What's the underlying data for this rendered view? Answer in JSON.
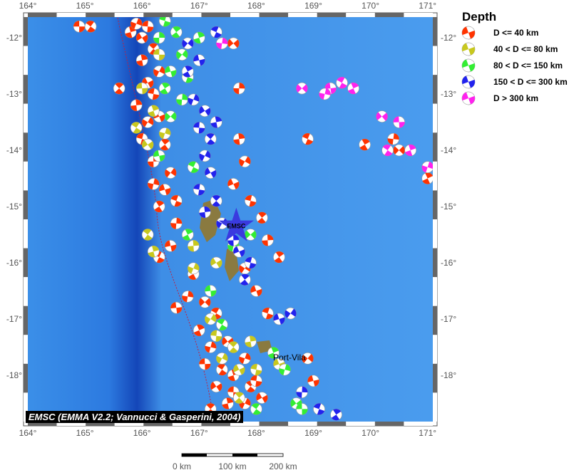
{
  "map": {
    "lon_range": [
      163.94,
      171.18
    ],
    "lat_range": [
      -18.9,
      -11.56
    ],
    "lon_ticks": [
      "164°",
      "165°",
      "166°",
      "167°",
      "168°",
      "169°",
      "170°",
      "171°"
    ],
    "lat_ticks": [
      "-12°",
      "-13°",
      "-14°",
      "-15°",
      "-16°",
      "-17°",
      "-18°"
    ],
    "ocean_color": "#2f86e6",
    "marker": {
      "label": "EMSC",
      "lon": 167.65,
      "lat": -15.35,
      "color": "#3a3adf"
    },
    "place_label": "Port-Vila",
    "credit": "EMSC (EMMA V2.2; Vannucci & Gasperini, 2004)"
  },
  "scale_bar": {
    "labels": [
      "0 km",
      "100 km",
      "200 km"
    ]
  },
  "legend": {
    "title": "Depth",
    "items": [
      {
        "label": "D <= 40 km",
        "color": "#ff3300"
      },
      {
        "label": "40 < D <= 80 km",
        "color": "#c8c81e"
      },
      {
        "label": "80 < D <= 150 km",
        "color": "#33ee33"
      },
      {
        "label": "150 < D <= 300 km",
        "color": "#2222ee"
      },
      {
        "label": "D > 300 km",
        "color": "#ff22ee"
      }
    ]
  },
  "events": [
    [
      164.9,
      -11.8,
      0
    ],
    [
      165.1,
      -11.8,
      0
    ],
    [
      165.8,
      -11.9,
      0
    ],
    [
      165.9,
      -11.75,
      0
    ],
    [
      166.0,
      -12.0,
      0
    ],
    [
      166.1,
      -11.8,
      0
    ],
    [
      166.2,
      -12.2,
      0
    ],
    [
      166.0,
      -12.4,
      0
    ],
    [
      166.3,
      -12.6,
      0
    ],
    [
      166.1,
      -12.8,
      0
    ],
    [
      166.2,
      -13.0,
      0
    ],
    [
      165.6,
      -12.9,
      0
    ],
    [
      165.9,
      -13.2,
      0
    ],
    [
      166.1,
      -13.5,
      0
    ],
    [
      166.3,
      -13.4,
      0
    ],
    [
      166.0,
      -13.8,
      0
    ],
    [
      166.4,
      -13.9,
      0
    ],
    [
      166.2,
      -14.2,
      0
    ],
    [
      166.5,
      -14.4,
      0
    ],
    [
      166.4,
      -14.7,
      0
    ],
    [
      166.6,
      -14.9,
      0
    ],
    [
      166.3,
      -15.0,
      0
    ],
    [
      166.6,
      -15.3,
      0
    ],
    [
      166.8,
      -15.5,
      0
    ],
    [
      166.5,
      -15.7,
      0
    ],
    [
      166.3,
      -15.9,
      0
    ],
    [
      166.9,
      -16.2,
      0
    ],
    [
      166.8,
      -16.6,
      0
    ],
    [
      167.1,
      -16.7,
      0
    ],
    [
      166.6,
      -16.8,
      0
    ],
    [
      167.3,
      -16.9,
      0
    ],
    [
      167.0,
      -17.2,
      0
    ],
    [
      167.2,
      -17.5,
      0
    ],
    [
      167.5,
      -17.4,
      0
    ],
    [
      167.1,
      -17.8,
      0
    ],
    [
      167.4,
      -17.9,
      0
    ],
    [
      167.6,
      -18.0,
      0
    ],
    [
      167.8,
      -17.7,
      0
    ],
    [
      167.3,
      -18.2,
      0
    ],
    [
      167.6,
      -18.3,
      0
    ],
    [
      167.9,
      -18.2,
      0
    ],
    [
      167.5,
      -18.5,
      0
    ],
    [
      167.8,
      -18.5,
      0
    ],
    [
      168.1,
      -18.4,
      0
    ],
    [
      168.0,
      -18.1,
      0
    ],
    [
      167.2,
      -18.6,
      0
    ],
    [
      167.7,
      -13.8,
      0
    ],
    [
      167.8,
      -14.2,
      0
    ],
    [
      167.6,
      -14.6,
      0
    ],
    [
      167.9,
      -14.9,
      0
    ],
    [
      168.1,
      -15.2,
      0
    ],
    [
      168.2,
      -15.6,
      0
    ],
    [
      167.8,
      -16.1,
      0
    ],
    [
      168.0,
      -16.5,
      0
    ],
    [
      168.2,
      -16.9,
      0
    ],
    [
      168.4,
      -15.9,
      0
    ],
    [
      167.7,
      -12.9,
      0
    ],
    [
      168.9,
      -17.7,
      0
    ],
    [
      169.0,
      -18.1,
      0
    ],
    [
      168.9,
      -13.8,
      0
    ],
    [
      169.9,
      -13.9,
      0
    ],
    [
      170.4,
      -13.8,
      0
    ],
    [
      170.5,
      -14.0,
      0
    ],
    [
      171.3,
      -13.8,
      0
    ],
    [
      171.2,
      -14.3,
      0
    ],
    [
      171.0,
      -14.5,
      0
    ],
    [
      166.2,
      -14.6,
      0
    ],
    [
      167.6,
      -12.1,
      0
    ],
    [
      166.0,
      -12.9,
      1
    ],
    [
      165.9,
      -13.6,
      1
    ],
    [
      166.2,
      -13.3,
      1
    ],
    [
      166.4,
      -13.7,
      1
    ],
    [
      166.1,
      -13.9,
      1
    ],
    [
      166.3,
      -12.3,
      1
    ],
    [
      166.1,
      -15.5,
      1
    ],
    [
      166.2,
      -15.8,
      1
    ],
    [
      166.9,
      -16.1,
      1
    ],
    [
      167.3,
      -16.0,
      1
    ],
    [
      167.3,
      -17.3,
      1
    ],
    [
      167.6,
      -17.5,
      1
    ],
    [
      167.9,
      -17.4,
      1
    ],
    [
      167.4,
      -17.7,
      1
    ],
    [
      167.7,
      -17.9,
      1
    ],
    [
      168.0,
      -17.9,
      1
    ],
    [
      167.7,
      -18.4,
      1
    ],
    [
      166.9,
      -15.7,
      1
    ],
    [
      167.2,
      -17.0,
      1
    ],
    [
      168.4,
      -17.8,
      1
    ],
    [
      166.4,
      -11.7,
      2
    ],
    [
      166.6,
      -11.9,
      2
    ],
    [
      166.3,
      -12.0,
      2
    ],
    [
      166.7,
      -12.3,
      2
    ],
    [
      166.5,
      -12.6,
      2
    ],
    [
      166.8,
      -12.7,
      2
    ],
    [
      166.4,
      -12.9,
      2
    ],
    [
      166.7,
      -13.1,
      2
    ],
    [
      166.5,
      -13.4,
      2
    ],
    [
      166.3,
      -14.1,
      2
    ],
    [
      166.9,
      -14.3,
      2
    ],
    [
      166.8,
      -15.5,
      2
    ],
    [
      167.6,
      -15.7,
      2
    ],
    [
      167.9,
      -15.5,
      2
    ],
    [
      167.2,
      -16.5,
      2
    ],
    [
      167.4,
      -17.1,
      2
    ],
    [
      168.3,
      -17.6,
      2
    ],
    [
      168.5,
      -17.9,
      2
    ],
    [
      168.7,
      -18.5,
      2
    ],
    [
      168.8,
      -18.6,
      2
    ],
    [
      168.0,
      -18.6,
      2
    ],
    [
      167.0,
      -12.0,
      2
    ],
    [
      166.9,
      -13.1,
      3
    ],
    [
      167.1,
      -13.3,
      3
    ],
    [
      167.0,
      -13.6,
      3
    ],
    [
      167.2,
      -13.8,
      3
    ],
    [
      167.3,
      -13.5,
      3
    ],
    [
      167.1,
      -14.1,
      3
    ],
    [
      167.2,
      -14.4,
      3
    ],
    [
      167.0,
      -14.7,
      3
    ],
    [
      167.3,
      -14.9,
      3
    ],
    [
      167.1,
      -15.1,
      3
    ],
    [
      167.4,
      -15.3,
      3
    ],
    [
      167.7,
      -15.8,
      3
    ],
    [
      167.9,
      -16.0,
      3
    ],
    [
      167.8,
      -16.3,
      3
    ],
    [
      167.6,
      -15.6,
      3
    ],
    [
      168.6,
      -16.9,
      3
    ],
    [
      168.4,
      -17.0,
      3
    ],
    [
      169.1,
      -18.6,
      3
    ],
    [
      169.4,
      -18.7,
      3
    ],
    [
      168.8,
      -18.3,
      3
    ],
    [
      166.8,
      -12.1,
      3
    ],
    [
      167.0,
      -12.4,
      3
    ],
    [
      167.3,
      -11.9,
      3
    ],
    [
      166.8,
      -12.6,
      3
    ],
    [
      167.4,
      -12.1,
      4
    ],
    [
      168.8,
      -12.9,
      4
    ],
    [
      169.3,
      -12.9,
      4
    ],
    [
      169.5,
      -12.8,
      4
    ],
    [
      169.7,
      -12.9,
      4
    ],
    [
      169.2,
      -13.0,
      4
    ],
    [
      170.2,
      -13.4,
      4
    ],
    [
      170.5,
      -13.5,
      4
    ],
    [
      170.3,
      -14.0,
      4
    ],
    [
      170.7,
      -14.0,
      4
    ],
    [
      171.0,
      -14.3,
      4
    ]
  ]
}
